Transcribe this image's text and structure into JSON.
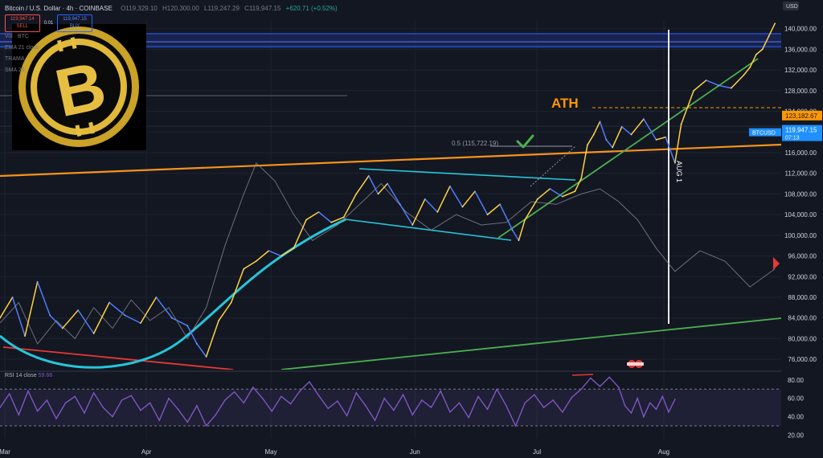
{
  "header": {
    "symbol": "Bitcoin / U.S. Dollar · 4h · COINBASE",
    "ohlc": [
      "O119,329.10",
      "H120,300.00",
      "L119,247.29",
      "C119,947.15",
      "+620.71 (+0.52%)"
    ],
    "sell_price": "119,947.14",
    "sell_label": "SELL",
    "spread": "0.01",
    "buy_price": "119,947.15",
    "buy_label": "BUY"
  },
  "indicators": [
    "Vol · BTC",
    "EMA 21 close",
    "TRAMA",
    "SMA 20"
  ],
  "rsi_label": {
    "name": "RSI 14 close",
    "value": "59.66"
  },
  "colors": {
    "background": "#131722",
    "price_up": "#ffd23f",
    "price_down": "#4f7cff",
    "trendline_orange": "#f7931a",
    "trendline_green": "#4caf50",
    "trendline_red": "#e53935",
    "curve_cyan": "#26c6da",
    "rsi_line": "#7e57c2",
    "label_bg": "#1e90ff"
  },
  "chart_data": [
    {
      "type": "line",
      "title": "Bitcoin / U.S. Dollar · 4h · COINBASE",
      "xlabel": "",
      "ylabel": "",
      "x_ticks": [
        "Mar",
        "Apr",
        "May",
        "Jun",
        "Jul",
        "Aug"
      ],
      "y_ticks": [
        76000,
        80000,
        84000,
        88000,
        92000,
        96000,
        100000,
        104000,
        108000,
        112000,
        116000,
        120000,
        124000,
        128000,
        132000,
        136000,
        140000
      ],
      "ylim": [
        74000,
        141500
      ],
      "grid": true,
      "series": [
        {
          "key": "btc_price",
          "points": [
            [
              0,
              84000
            ],
            [
              4,
              88000
            ],
            [
              8,
              80500
            ],
            [
              12,
              91000
            ],
            [
              16,
              84500
            ],
            [
              20,
              82000
            ],
            [
              25,
              85500
            ],
            [
              30,
              81000
            ],
            [
              35,
              87000
            ],
            [
              40,
              84500
            ],
            [
              45,
              83000
            ],
            [
              50,
              88000
            ],
            [
              55,
              84000
            ],
            [
              60,
              82500
            ],
            [
              63,
              79000
            ],
            [
              66,
              76500
            ],
            [
              70,
              83500
            ],
            [
              74,
              87000
            ],
            [
              78,
              93500
            ],
            [
              82,
              95000
            ],
            [
              86,
              97000
            ],
            [
              90,
              96000
            ],
            [
              94,
              97500
            ],
            [
              98,
              103000
            ],
            [
              102,
              104500
            ],
            [
              106,
              102500
            ],
            [
              110,
              103500
            ],
            [
              114,
              108000
            ],
            [
              118,
              111500
            ],
            [
              121,
              108000
            ],
            [
              124,
              110000
            ],
            [
              128,
              106000
            ],
            [
              132,
              102000
            ],
            [
              136,
              107000
            ],
            [
              140,
              104500
            ],
            [
              144,
              109500
            ],
            [
              148,
              105500
            ],
            [
              152,
              108500
            ],
            [
              156,
              104000
            ],
            [
              160,
              106000
            ],
            [
              164,
              101000
            ],
            [
              166,
              99000
            ],
            [
              168,
              103000
            ],
            [
              172,
              107000
            ],
            [
              176,
              109000
            ],
            [
              180,
              107500
            ],
            [
              184,
              108500
            ],
            [
              186,
              111000
            ],
            [
              188,
              117500
            ],
            [
              190,
              119500
            ],
            [
              192,
              122000
            ],
            [
              194,
              118500
            ],
            [
              196,
              117000
            ],
            [
              199,
              121000
            ],
            [
              202,
              119500
            ],
            [
              206,
              122500
            ],
            [
              210,
              118500
            ],
            [
              213,
              119000
            ],
            [
              216,
              114000
            ],
            [
              218,
              121500
            ],
            [
              222,
              128000
            ],
            [
              226,
              130000
            ],
            [
              230,
              129000
            ],
            [
              234,
              128500
            ],
            [
              238,
              131000
            ],
            [
              240,
              132500
            ],
            [
              242,
              135000
            ],
            [
              244,
              136000
            ],
            [
              246,
              138500
            ],
            [
              248,
              141000
            ]
          ]
        },
        {
          "key": "eth_btc_overlay",
          "points": [
            [
              0,
              83000
            ],
            [
              6,
              87000
            ],
            [
              12,
              79000
            ],
            [
              18,
              83500
            ],
            [
              24,
              80000
            ],
            [
              30,
              86000
            ],
            [
              36,
              82000
            ],
            [
              42,
              87500
            ],
            [
              48,
              83500
            ],
            [
              54,
              86000
            ],
            [
              60,
              80000
            ],
            [
              66,
              86000
            ],
            [
              72,
              98000
            ],
            [
              78,
              108000
            ],
            [
              82,
              114000
            ],
            [
              88,
              110500
            ],
            [
              94,
              104000
            ],
            [
              100,
              99000
            ],
            [
              108,
              102000
            ],
            [
              116,
              106500
            ],
            [
              122,
              110000
            ],
            [
              130,
              104500
            ],
            [
              138,
              101000
            ],
            [
              146,
              104000
            ],
            [
              154,
              102000
            ],
            [
              162,
              102500
            ],
            [
              170,
              106500
            ],
            [
              178,
              106000
            ],
            [
              186,
              108000
            ],
            [
              192,
              109000
            ],
            [
              198,
              106500
            ],
            [
              204,
              103000
            ],
            [
              210,
              97500
            ],
            [
              216,
              93000
            ],
            [
              224,
              97000
            ],
            [
              232,
              95000
            ],
            [
              240,
              90000
            ],
            [
              248,
              93500
            ]
          ]
        }
      ],
      "annotations": [
        {
          "text": "ATH",
          "x": 180,
          "y": 124000
        },
        {
          "text": "0.5 (115,722.19)",
          "x": 145,
          "y": 116000
        },
        {
          "text": "AUG 1",
          "x": 215,
          "y": 112000
        }
      ],
      "levels": [
        {
          "label": "123,182.67",
          "y": 123182.67
        },
        {
          "label": "BTCUSD",
          "y": 119947.15
        },
        {
          "label": "119,947.15",
          "y": 119947.15
        },
        {
          "label": "07:13",
          "y": 119947.15
        }
      ]
    },
    {
      "type": "line",
      "title": "RSI 14 close",
      "y_ticks": [
        20,
        40,
        60,
        80
      ],
      "ylim": [
        16,
        86
      ],
      "overbought": 70,
      "oversold": 30,
      "series": [
        {
          "key": "rsi",
          "points": [
            [
              0,
              50
            ],
            [
              3,
              65
            ],
            [
              6,
              42
            ],
            [
              9,
              68
            ],
            [
              12,
              46
            ],
            [
              15,
              58
            ],
            [
              18,
              38
            ],
            [
              21,
              55
            ],
            [
              24,
              62
            ],
            [
              27,
              44
            ],
            [
              30,
              66
            ],
            [
              33,
              50
            ],
            [
              36,
              40
            ],
            [
              39,
              58
            ],
            [
              42,
              63
            ],
            [
              45,
              47
            ],
            [
              48,
              55
            ],
            [
              51,
              36
            ],
            [
              54,
              60
            ],
            [
              57,
              48
            ],
            [
              60,
              34
            ],
            [
              63,
              52
            ],
            [
              66,
              30
            ],
            [
              69,
              42
            ],
            [
              72,
              58
            ],
            [
              75,
              67
            ],
            [
              78,
              55
            ],
            [
              81,
              72
            ],
            [
              84,
              60
            ],
            [
              87,
              46
            ],
            [
              90,
              62
            ],
            [
              93,
              54
            ],
            [
              96,
              68
            ],
            [
              99,
              78
            ],
            [
              102,
              63
            ],
            [
              105,
              49
            ],
            [
              108,
              57
            ],
            [
              111,
              41
            ],
            [
              114,
              66
            ],
            [
              117,
              52
            ],
            [
              120,
              36
            ],
            [
              123,
              60
            ],
            [
              126,
              47
            ],
            [
              129,
              64
            ],
            [
              132,
              42
            ],
            [
              135,
              58
            ],
            [
              138,
              50
            ],
            [
              141,
              68
            ],
            [
              144,
              45
            ],
            [
              147,
              55
            ],
            [
              150,
              39
            ],
            [
              153,
              62
            ],
            [
              156,
              48
            ],
            [
              159,
              70
            ],
            [
              162,
              52
            ],
            [
              165,
              30
            ],
            [
              168,
              55
            ],
            [
              171,
              64
            ],
            [
              174,
              50
            ],
            [
              177,
              58
            ],
            [
              180,
              45
            ],
            [
              183,
              61
            ],
            [
              186,
              70
            ],
            [
              189,
              82
            ],
            [
              192,
              73
            ],
            [
              195,
              83
            ],
            [
              198,
              72
            ],
            [
              200,
              52
            ],
            [
              202,
              44
            ],
            [
              204,
              60
            ],
            [
              206,
              40
            ],
            [
              208,
              55
            ],
            [
              210,
              48
            ],
            [
              212,
              62
            ],
            [
              214,
              45
            ],
            [
              216,
              59
            ]
          ]
        }
      ]
    }
  ]
}
